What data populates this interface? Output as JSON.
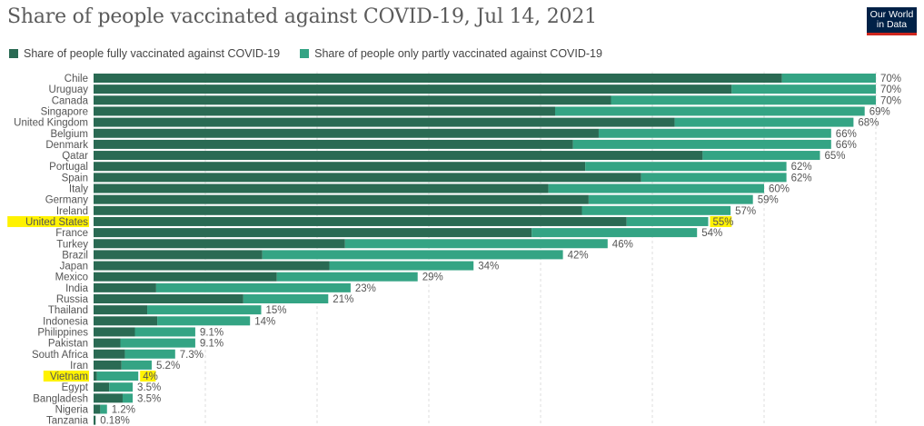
{
  "header": {
    "title": "Share of people vaccinated against COVID-19, Jul 14, 2021",
    "logo_line1": "Our World",
    "logo_line2": "in Data"
  },
  "colors": {
    "full": "#2a6a53",
    "partial": "#34a484",
    "highlight": "#fff200",
    "grid": "#dddddd"
  },
  "chart_data": {
    "type": "bar",
    "orientation": "horizontal",
    "stacked": true,
    "title": "Share of people vaccinated against COVID-19, Jul 14, 2021",
    "xlabel": "",
    "ylabel": "",
    "xlim": [
      0,
      70
    ],
    "grid": true,
    "gridlines": [
      10,
      20,
      30,
      40,
      50,
      60,
      70
    ],
    "legend_position": "top-left",
    "legend": [
      "Share of people fully vaccinated against COVID-19",
      "Share of people only partly vaccinated against COVID-19"
    ],
    "categories": [
      "Chile",
      "Uruguay",
      "Canada",
      "Singapore",
      "United Kingdom",
      "Belgium",
      "Denmark",
      "Qatar",
      "Portugal",
      "Spain",
      "Italy",
      "Germany",
      "Ireland",
      "United States",
      "France",
      "Turkey",
      "Brazil",
      "Japan",
      "Mexico",
      "India",
      "Russia",
      "Thailand",
      "Indonesia",
      "Philippines",
      "Pakistan",
      "South Africa",
      "Iran",
      "Vietnam",
      "Egypt",
      "Bangladesh",
      "Nigeria",
      "Tanzania"
    ],
    "highlighted": [
      "United States",
      "Vietnam"
    ],
    "totals": [
      70,
      70,
      70,
      69,
      68,
      66,
      66,
      65,
      62,
      62,
      60,
      59,
      57,
      55,
      54,
      46,
      42,
      34,
      29,
      23,
      21,
      15,
      14,
      9.1,
      9.1,
      7.3,
      5.2,
      4,
      3.5,
      3.5,
      1.2,
      0.18
    ],
    "total_labels": [
      "70%",
      "70%",
      "70%",
      "69%",
      "68%",
      "66%",
      "66%",
      "65%",
      "62%",
      "62%",
      "60%",
      "59%",
      "57%",
      "55%",
      "54%",
      "46%",
      "42%",
      "34%",
      "29%",
      "23%",
      "21%",
      "15%",
      "14%",
      "9.1%",
      "9.1%",
      "7.3%",
      "5.2%",
      "4%",
      "3.5%",
      "3.5%",
      "1.2%",
      "0.18%"
    ],
    "series": [
      {
        "name": "Share of people fully vaccinated against COVID-19",
        "values": [
          61.6,
          57.1,
          46.3,
          41.3,
          52.0,
          45.2,
          42.9,
          54.5,
          44.0,
          49.0,
          40.7,
          44.3,
          43.7,
          47.7,
          39.2,
          22.5,
          15.1,
          21.1,
          16.4,
          5.6,
          13.4,
          4.8,
          5.7,
          3.7,
          2.4,
          2.8,
          2.5,
          0.3,
          1.4,
          2.6,
          0.6,
          0.18
        ]
      },
      {
        "name": "Share of people only partly vaccinated against COVID-19",
        "values": [
          8.4,
          12.9,
          23.7,
          27.7,
          16.0,
          20.8,
          23.1,
          10.5,
          18.0,
          13.0,
          19.3,
          14.7,
          13.3,
          7.3,
          14.8,
          23.5,
          26.9,
          12.9,
          12.6,
          17.4,
          7.6,
          10.2,
          8.3,
          5.4,
          6.7,
          4.5,
          2.7,
          3.7,
          2.1,
          0.9,
          0.6,
          0.0
        ]
      }
    ]
  }
}
